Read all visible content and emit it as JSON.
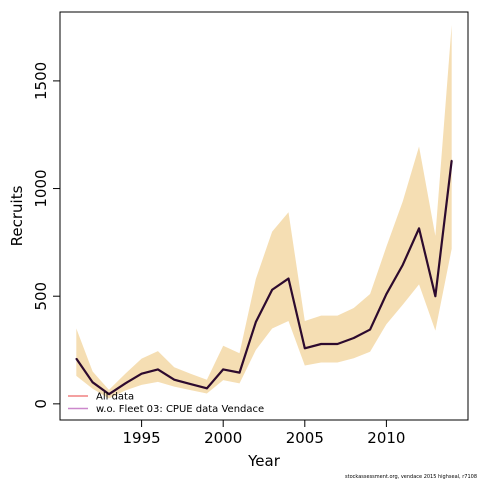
{
  "chart_data": {
    "type": "line",
    "xlabel": "Year",
    "ylabel": "Recruits",
    "xlim": [
      1990,
      2015
    ],
    "ylim": [
      -75,
      1820
    ],
    "x_ticks": [
      1995,
      2000,
      2005,
      2010
    ],
    "y_ticks": [
      0,
      500,
      1000,
      1500
    ],
    "grid": false,
    "legend_position": "bottom-left",
    "legend": [
      {
        "label": "All data",
        "color": "#f08080"
      },
      {
        "label": "w.o. Fleet 03:  CPUE data Vendace",
        "color": "#cc88cc"
      }
    ],
    "x": [
      1991,
      1992,
      1993,
      1994,
      1995,
      1996,
      1997,
      1998,
      1999,
      2000,
      2001,
      2002,
      2003,
      2004,
      2005,
      2006,
      2007,
      2008,
      2009,
      2010,
      2011,
      2012,
      2013,
      2014
    ],
    "series": [
      {
        "values": [
          210,
          100,
          45,
          95,
          140,
          160,
          112,
          92,
          72,
          160,
          145,
          380,
          530,
          582,
          258,
          278,
          278,
          306,
          345,
          510,
          645,
          815,
          500,
          1130
        ],
        "color": "#2d0a2e"
      }
    ],
    "band": {
      "lower": [
        130,
        70,
        25,
        62,
        88,
        102,
        80,
        64,
        48,
        110,
        95,
        250,
        350,
        385,
        178,
        192,
        192,
        212,
        242,
        370,
        460,
        555,
        340,
        720
      ],
      "upper": [
        350,
        150,
        65,
        140,
        210,
        245,
        170,
        140,
        112,
        270,
        235,
        580,
        800,
        890,
        385,
        410,
        410,
        445,
        510,
        730,
        940,
        1195,
        780,
        1760
      ],
      "color": "#f5deb3"
    },
    "footnote": "stockassessment.org, vendace 2015 highseal, r7108"
  }
}
